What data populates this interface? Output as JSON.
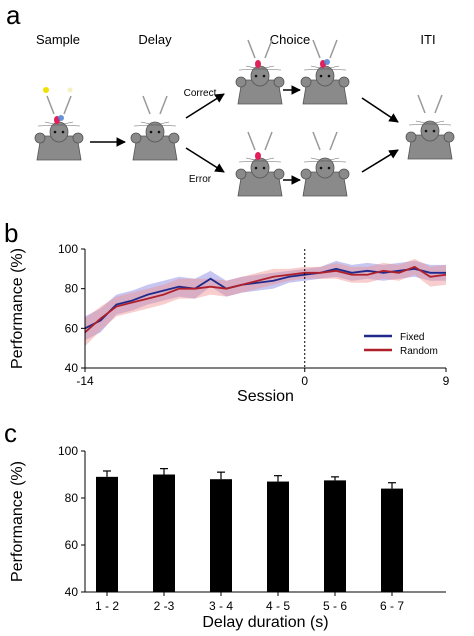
{
  "panel_a": {
    "letter": "a",
    "stages": [
      "Sample",
      "Delay",
      "Choice",
      "ITI"
    ],
    "outcomes": {
      "correct": "Correct",
      "error": "Error"
    }
  },
  "chart_data": [
    {
      "panel": "b",
      "type": "line",
      "xlabel": "Session",
      "ylabel": "Performance (%)",
      "xlim": [
        -14,
        9
      ],
      "ylim": [
        40,
        100
      ],
      "x_ticks": [
        -14,
        0,
        9
      ],
      "y_ticks": [
        40,
        60,
        80,
        100
      ],
      "vertical_marker_x": 0,
      "legend_position": "bottom-right",
      "x": [
        -14,
        -13,
        -12,
        -11,
        -10,
        -9,
        -8,
        -7,
        -6,
        -5,
        -4,
        -3,
        -2,
        -1,
        0,
        1,
        2,
        3,
        4,
        5,
        6,
        7,
        8,
        9
      ],
      "series": [
        {
          "name": "Fixed",
          "color": "#1f2a8c",
          "band_color": "#8080e0",
          "values": [
            60,
            64,
            72,
            74,
            77,
            79,
            81,
            80,
            85,
            80,
            82,
            83,
            84,
            86,
            87,
            88,
            90,
            88,
            89,
            88,
            89,
            90,
            88,
            88
          ],
          "sem": [
            6,
            6,
            5,
            5,
            5,
            5,
            5,
            5,
            4,
            4,
            4,
            4,
            4,
            3,
            3,
            3,
            4,
            4,
            4,
            4,
            4,
            4,
            4,
            4
          ]
        },
        {
          "name": "Random",
          "color": "#b0202a",
          "band_color": "#f09090",
          "values": [
            58,
            65,
            71,
            73,
            75,
            77,
            80,
            80,
            81,
            80,
            82,
            84,
            86,
            87,
            88,
            88,
            89,
            87,
            87,
            89,
            88,
            91,
            86,
            87
          ],
          "sem": [
            7,
            6,
            5,
            5,
            5,
            5,
            5,
            5,
            4,
            4,
            4,
            4,
            4,
            3,
            3,
            3,
            4,
            4,
            4,
            4,
            4,
            4,
            5,
            5
          ]
        }
      ]
    },
    {
      "panel": "c",
      "type": "bar",
      "xlabel": "Delay duration (s)",
      "ylabel": "Performance (%)",
      "ylim": [
        40,
        100
      ],
      "y_ticks": [
        40,
        60,
        80,
        100
      ],
      "categories": [
        "1 - 2",
        "2 -3",
        "3 - 4",
        "4 - 5",
        "5 - 6",
        "6 - 7"
      ],
      "values": [
        89,
        90,
        88,
        87,
        87.5,
        84
      ],
      "errors": [
        2.5,
        2.5,
        3,
        2.5,
        1.5,
        2.5
      ],
      "bar_color": "#000000"
    }
  ]
}
